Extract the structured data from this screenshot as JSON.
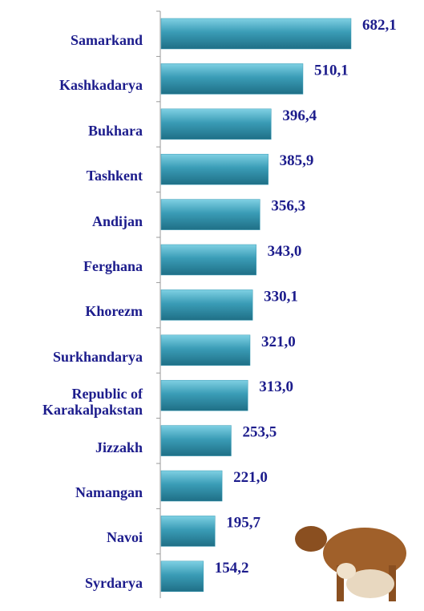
{
  "chart_data": {
    "type": "bar",
    "orientation": "horizontal",
    "categories": [
      "Samarkand",
      "Kashkadarya",
      "Bukhara",
      "Tashkent",
      "Andijan",
      "Ferghana",
      "Khorezm",
      "Surkhandarya",
      "Republic of Karakalpakstan",
      "Jizzakh",
      "Namangan",
      "Navoi",
      "Syrdarya"
    ],
    "values": [
      682.1,
      510.1,
      396.4,
      385.9,
      356.3,
      343.0,
      330.1,
      321.0,
      313.0,
      253.5,
      221.0,
      195.7,
      154.2
    ],
    "value_labels": [
      "682,1",
      "510,1",
      "396,4",
      "385,9",
      "356,3",
      "343,0",
      "330,1",
      "321,0",
      "313,0",
      "253,5",
      "221,0",
      "195,7",
      "154,2"
    ],
    "color": "#3a9cb6"
  }
}
